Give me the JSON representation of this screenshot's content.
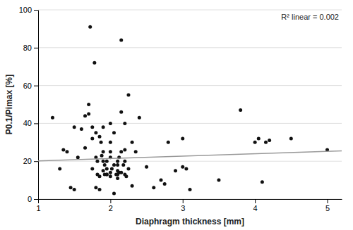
{
  "chart_data": {
    "type": "scatter",
    "xlabel": "Diaphragm thickness [mm]",
    "ylabel": "P0.1/Pimax [%]",
    "annotation": "R² linear = 0.002",
    "xlim": [
      1,
      5.2
    ],
    "ylim": [
      0,
      100
    ],
    "xticks": [
      1,
      2,
      3,
      4,
      5
    ],
    "yticks": [
      0,
      20,
      40,
      60,
      80,
      100
    ],
    "grid": true,
    "series": [
      {
        "type": "scatter",
        "color": "#111111",
        "x": [
          1.2,
          1.3,
          1.35,
          1.4,
          1.45,
          1.5,
          1.5,
          1.55,
          1.6,
          1.65,
          1.65,
          1.7,
          1.7,
          1.72,
          1.75,
          1.75,
          1.75,
          1.78,
          1.8,
          1.8,
          1.8,
          1.82,
          1.82,
          1.85,
          1.85,
          1.85,
          1.87,
          1.88,
          1.9,
          1.9,
          1.9,
          1.9,
          1.92,
          1.92,
          1.95,
          1.95,
          1.95,
          1.95,
          2.0,
          2.0,
          2.0,
          2.0,
          2.0,
          2.0,
          2.02,
          2.05,
          2.05,
          2.05,
          2.08,
          2.1,
          2.1,
          2.1,
          2.1,
          2.1,
          2.12,
          2.12,
          2.15,
          2.15,
          2.15,
          2.15,
          2.18,
          2.2,
          2.2,
          2.2,
          2.2,
          2.22,
          2.25,
          2.25,
          2.3,
          2.3,
          2.35,
          2.4,
          2.5,
          2.6,
          2.7,
          2.75,
          2.8,
          2.9,
          3.0,
          3.0,
          3.05,
          3.1,
          3.5,
          3.8,
          4.0,
          4.05,
          4.1,
          4.15,
          4.2,
          4.5,
          5.0
        ],
        "values": [
          43,
          16,
          26,
          25,
          6,
          5,
          38,
          22,
          37,
          44,
          27,
          50,
          45,
          91,
          16,
          32,
          38,
          72,
          6,
          35,
          22,
          20,
          13,
          5,
          33,
          12,
          30,
          23,
          15,
          25,
          38,
          20,
          13,
          18,
          13,
          13,
          20,
          16,
          12,
          40,
          25,
          14,
          30,
          22,
          16,
          3,
          35,
          18,
          13,
          15,
          18,
          20,
          11,
          13,
          14,
          22,
          46,
          84,
          25,
          14,
          18,
          26,
          40,
          20,
          13,
          12,
          55,
          16,
          7,
          30,
          25,
          43,
          17,
          6,
          10,
          8,
          30,
          15,
          32,
          17,
          16,
          5,
          10,
          47,
          30,
          32,
          9,
          30,
          31,
          32,
          26
        ]
      },
      {
        "type": "line",
        "color": "#999999",
        "x": [
          1.0,
          5.2
        ],
        "values": [
          20.2,
          25.5
        ]
      }
    ]
  }
}
